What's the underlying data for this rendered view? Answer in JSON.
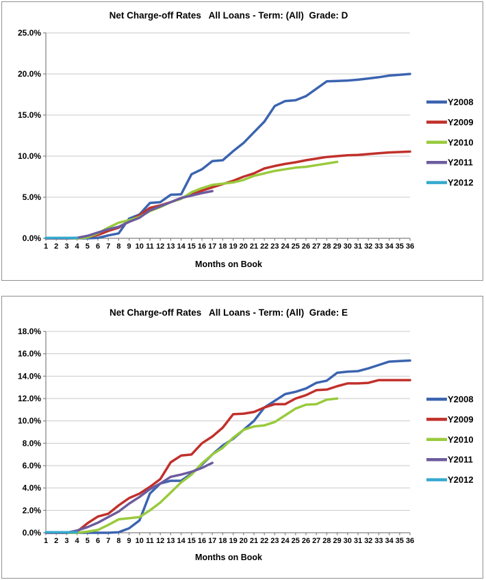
{
  "window": {
    "background": "#FFFFFF",
    "panel_border_color": "#8F8F8F",
    "gridline_color": "#C9C9C9",
    "axis_color": "#808080",
    "text_color": "#000000"
  },
  "chart_data": [
    {
      "type": "line",
      "title": "Net Charge-off Rates   All Loans - Term: (All)  Grade: D",
      "xlabel": "Months on Book",
      "ylabel": "",
      "grid": true,
      "legend_position": "right",
      "ylim": [
        0,
        25
      ],
      "ytick_step": 5,
      "ytick_labels": [
        "0.0%",
        "5.0%",
        "10.0%",
        "15.0%",
        "20.0%",
        "25.0%"
      ],
      "x_categories": [
        1,
        2,
        3,
        4,
        5,
        6,
        7,
        8,
        9,
        10,
        11,
        12,
        13,
        14,
        15,
        16,
        17,
        18,
        19,
        20,
        21,
        22,
        23,
        24,
        25,
        26,
        27,
        28,
        29,
        30,
        31,
        32,
        33,
        34,
        35,
        36
      ],
      "series": [
        {
          "name": "Y2008",
          "color": "#3B64B0",
          "values": [
            0,
            0,
            0,
            0,
            0,
            0.05,
            0.35,
            0.6,
            2.4,
            2.9,
            4.3,
            4.4,
            5.3,
            5.35,
            7.8,
            8.4,
            9.4,
            9.5,
            10.6,
            11.6,
            12.9,
            14.2,
            16.1,
            16.7,
            16.8,
            17.3,
            18.2,
            19.1,
            19.15,
            19.2,
            19.3,
            19.45,
            19.6,
            19.8,
            19.9,
            20.0
          ]
        },
        {
          "name": "Y2009",
          "color": "#C1302B",
          "values": [
            0,
            0,
            0,
            0.05,
            0.15,
            0.4,
            0.9,
            1.3,
            2.1,
            2.8,
            3.7,
            4.0,
            4.4,
            4.9,
            5.4,
            5.8,
            6.2,
            6.6,
            7.0,
            7.5,
            7.9,
            8.5,
            8.8,
            9.05,
            9.25,
            9.5,
            9.7,
            9.9,
            10.0,
            10.1,
            10.15,
            10.25,
            10.35,
            10.45,
            10.5,
            10.55
          ]
        },
        {
          "name": "Y2010",
          "color": "#99CA3C",
          "values": [
            0,
            0,
            0,
            0,
            0.1,
            0.6,
            1.3,
            1.9,
            2.2,
            2.6,
            3.3,
            3.8,
            4.4,
            4.8,
            5.6,
            6.1,
            6.5,
            6.65,
            6.8,
            7.1,
            7.6,
            7.9,
            8.2,
            8.4,
            8.6,
            8.7,
            8.9,
            9.1,
            9.3,
            null,
            null,
            null,
            null,
            null,
            null,
            null
          ]
        },
        {
          "name": "Y2011",
          "color": "#6C5B9E",
          "values": [
            0,
            0,
            0,
            0.05,
            0.3,
            0.7,
            1.1,
            1.4,
            2.0,
            2.5,
            3.4,
            3.9,
            4.4,
            4.9,
            5.2,
            5.5,
            5.75,
            null,
            null,
            null,
            null,
            null,
            null,
            null,
            null,
            null,
            null,
            null,
            null,
            null,
            null,
            null,
            null,
            null,
            null,
            null
          ]
        },
        {
          "name": "Y2012",
          "color": "#35A9CE",
          "values": [
            0.05,
            0.05,
            0.05,
            0.05,
            null,
            null,
            null,
            null,
            null,
            null,
            null,
            null,
            null,
            null,
            null,
            null,
            null,
            null,
            null,
            null,
            null,
            null,
            null,
            null,
            null,
            null,
            null,
            null,
            null,
            null,
            null,
            null,
            null,
            null,
            null,
            null
          ]
        }
      ]
    },
    {
      "type": "line",
      "title": "Net Charge-off Rates   All Loans - Term: (All)  Grade: E",
      "xlabel": "Months on Book",
      "ylabel": "",
      "grid": true,
      "legend_position": "right",
      "ylim": [
        0,
        18
      ],
      "ytick_step": 2,
      "ytick_labels": [
        "0.0%",
        "2.0%",
        "4.0%",
        "6.0%",
        "8.0%",
        "10.0%",
        "12.0%",
        "14.0%",
        "16.0%",
        "18.0%"
      ],
      "x_categories": [
        1,
        2,
        3,
        4,
        5,
        6,
        7,
        8,
        9,
        10,
        11,
        12,
        13,
        14,
        15,
        16,
        17,
        18,
        19,
        20,
        21,
        22,
        23,
        24,
        25,
        26,
        27,
        28,
        29,
        30,
        31,
        32,
        33,
        34,
        35,
        36
      ],
      "series": [
        {
          "name": "Y2008",
          "color": "#3B64B0",
          "values": [
            0,
            0,
            0,
            0,
            0,
            0,
            0,
            0.05,
            0.4,
            1.1,
            3.5,
            4.4,
            4.65,
            4.65,
            5.3,
            6.1,
            7.0,
            7.8,
            8.4,
            9.2,
            10.0,
            11.2,
            11.8,
            12.4,
            12.6,
            12.9,
            13.4,
            13.6,
            14.3,
            14.4,
            14.45,
            14.7,
            15.0,
            15.3,
            15.35,
            15.4
          ]
        },
        {
          "name": "Y2009",
          "color": "#C1302B",
          "values": [
            0,
            0,
            0,
            0.1,
            0.85,
            1.45,
            1.7,
            2.45,
            3.1,
            3.5,
            4.1,
            4.8,
            6.3,
            6.9,
            7.0,
            8.0,
            8.6,
            9.4,
            10.6,
            10.65,
            10.8,
            11.2,
            11.5,
            11.5,
            12.0,
            12.3,
            12.75,
            12.8,
            13.1,
            13.35,
            13.35,
            13.4,
            13.65,
            13.65,
            13.65,
            13.65
          ]
        },
        {
          "name": "Y2010",
          "color": "#99CA3C",
          "values": [
            0,
            0,
            0,
            0,
            0.1,
            0.25,
            0.7,
            1.2,
            1.3,
            1.4,
            2.0,
            2.7,
            3.6,
            4.5,
            5.2,
            6.2,
            7.0,
            7.6,
            8.5,
            9.2,
            9.5,
            9.6,
            9.9,
            10.5,
            11.1,
            11.45,
            11.5,
            11.9,
            12.0,
            null,
            null,
            null,
            null,
            null,
            null,
            null
          ]
        },
        {
          "name": "Y2011",
          "color": "#6C5B9E",
          "values": [
            0,
            0,
            0,
            0.2,
            0.5,
            0.9,
            1.4,
            1.9,
            2.6,
            3.2,
            3.9,
            4.4,
            5.0,
            5.2,
            5.45,
            5.8,
            6.25,
            null,
            null,
            null,
            null,
            null,
            null,
            null,
            null,
            null,
            null,
            null,
            null,
            null,
            null,
            null,
            null,
            null,
            null,
            null
          ]
        },
        {
          "name": "Y2012",
          "color": "#35A9CE",
          "values": [
            0.05,
            0.05,
            0.05,
            0.05,
            null,
            null,
            null,
            null,
            null,
            null,
            null,
            null,
            null,
            null,
            null,
            null,
            null,
            null,
            null,
            null,
            null,
            null,
            null,
            null,
            null,
            null,
            null,
            null,
            null,
            null,
            null,
            null,
            null,
            null,
            null,
            null
          ]
        }
      ]
    }
  ]
}
